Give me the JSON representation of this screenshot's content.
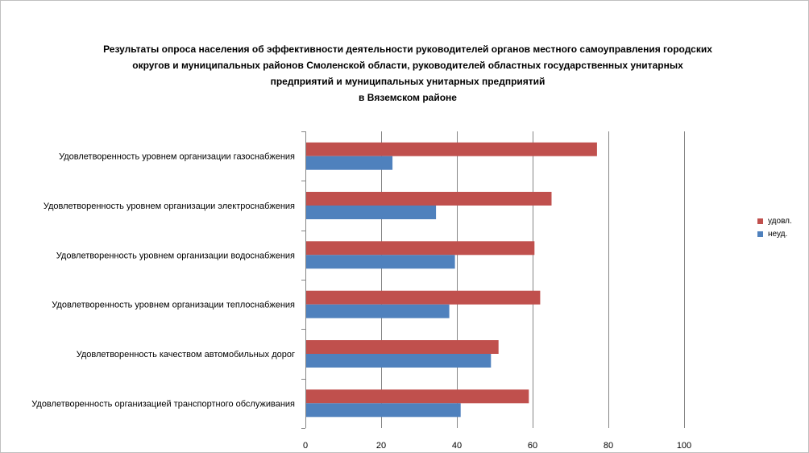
{
  "chart_data": {
    "type": "bar",
    "orientation": "horizontal",
    "title_lines": [
      "Результаты опроса населения об эффективности деятельности руководителей органов местного самоуправления городских",
      "округов и муниципальных районов Смоленской области, руководителей областных государственных унитарных",
      "предприятий и муниципальных унитарных предприятий",
      "в Вяземском районе"
    ],
    "categories": [
      "Удовлетворенность уровнем организации газоснабжения",
      "Удовлетворенность уровнем организации электроснабжения",
      "Удовлетворенность уровнем организации водоснабжения",
      "Удовлетворенность уровнем организации теплоснабжения",
      "Удовлетворенность качеством автомобильных дорог",
      "Удовлетворенность организацией транспортного обслуживания"
    ],
    "series": [
      {
        "name": "удовл.",
        "color": "#c0504d",
        "values": [
          77,
          65,
          60.5,
          62,
          51,
          59
        ]
      },
      {
        "name": "неуд.",
        "color": "#4f81bd",
        "values": [
          23,
          34.5,
          39.5,
          38,
          49,
          41
        ]
      }
    ],
    "xlim": [
      0,
      100
    ],
    "ticks": [
      0,
      20,
      40,
      60,
      80,
      100
    ],
    "tick_labels": [
      "0",
      "20",
      "40",
      "60",
      "80",
      "100"
    ],
    "grid": true,
    "legend_position": "right"
  }
}
